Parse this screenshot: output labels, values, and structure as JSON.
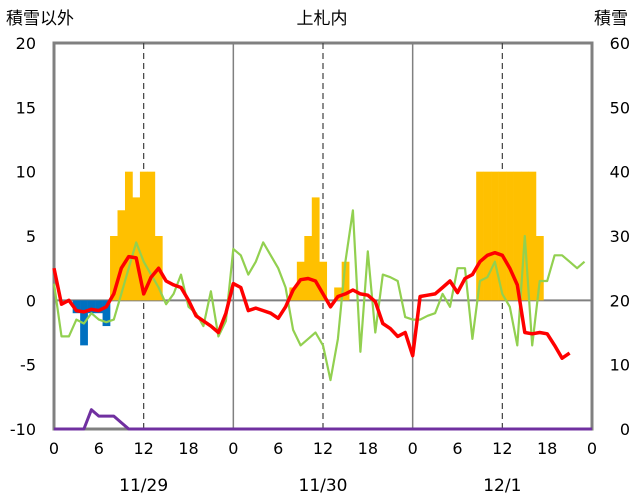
{
  "chart_data": {
    "type": "line",
    "title": "上札内",
    "left_axis_label": "積雪以外",
    "right_axis_label": "積雪",
    "left_ylim": [
      -10,
      20
    ],
    "left_yticks": [
      -10,
      -5,
      0,
      5,
      10,
      15,
      20
    ],
    "right_ylim": [
      0,
      60
    ],
    "right_yticks": [
      0,
      10,
      20,
      30,
      40,
      50,
      60
    ],
    "xlim": [
      0,
      72
    ],
    "x_unit": "hour",
    "x_tick_labels": [
      "0",
      "6",
      "12",
      "18",
      "0",
      "6",
      "12",
      "18",
      "0",
      "6",
      "12",
      "18",
      "0"
    ],
    "day_labels": [
      {
        "label": "11/29",
        "hour": 12
      },
      {
        "label": "11/30",
        "hour": 36
      },
      {
        "label": "12/1",
        "hour": 60
      }
    ],
    "grid": "solid day separators, dashed noon lines",
    "colors": {
      "snowfall": "#ffc000",
      "precipitation": "#0070c0",
      "temperature": "#ff0000",
      "wind": "#92d050",
      "snow_depth": "#7030a0",
      "frame": "#808080"
    },
    "series": [
      {
        "key": "snowfall",
        "style": "bar",
        "axis": "left",
        "data": [
          [
            8,
            5
          ],
          [
            9,
            7
          ],
          [
            10,
            10
          ],
          [
            11,
            8
          ],
          [
            12,
            10
          ],
          [
            13,
            10
          ],
          [
            14,
            5
          ],
          [
            32,
            1
          ],
          [
            33,
            3
          ],
          [
            34,
            5
          ],
          [
            35,
            8
          ],
          [
            36,
            3
          ],
          [
            38,
            1
          ],
          [
            39,
            3
          ],
          [
            57,
            10
          ],
          [
            58,
            10
          ],
          [
            59,
            10
          ],
          [
            60,
            10
          ],
          [
            61,
            10
          ],
          [
            62,
            10
          ],
          [
            63,
            10
          ],
          [
            64,
            10
          ],
          [
            65,
            5
          ]
        ]
      },
      {
        "key": "precipitation",
        "style": "bar",
        "axis": "left",
        "data": [
          [
            3,
            -1
          ],
          [
            4,
            -3.5
          ],
          [
            5,
            -1
          ],
          [
            6,
            -1
          ],
          [
            7,
            -2
          ]
        ]
      },
      {
        "key": "temperature",
        "style": "line",
        "axis": "left",
        "data": [
          [
            0,
            2.5
          ],
          [
            1,
            -0.3
          ],
          [
            2,
            0
          ],
          [
            3,
            -0.8
          ],
          [
            4,
            -0.9
          ],
          [
            5,
            -0.7
          ],
          [
            6,
            -0.8
          ],
          [
            7,
            -0.5
          ],
          [
            8,
            0.5
          ],
          [
            9,
            2.5
          ],
          [
            10,
            3.4
          ],
          [
            11,
            3.3
          ],
          [
            12,
            0.5
          ],
          [
            13,
            1.8
          ],
          [
            14,
            2.5
          ],
          [
            15,
            1.5
          ],
          [
            16,
            1.2
          ],
          [
            17,
            1
          ],
          [
            18,
            0
          ],
          [
            19,
            -1.2
          ],
          [
            20,
            -1.6
          ],
          [
            21,
            -2
          ],
          [
            22,
            -2.5
          ],
          [
            23,
            -1
          ],
          [
            24,
            1.3
          ],
          [
            25,
            1
          ],
          [
            26,
            -0.8
          ],
          [
            27,
            -0.6
          ],
          [
            28,
            -0.8
          ],
          [
            29,
            -1
          ],
          [
            30,
            -1.4
          ],
          [
            31,
            -0.5
          ],
          [
            32,
            0.8
          ],
          [
            33,
            1.6
          ],
          [
            34,
            1.7
          ],
          [
            35,
            1.5
          ],
          [
            36,
            0.5
          ],
          [
            37,
            -0.5
          ],
          [
            38,
            0.3
          ],
          [
            39,
            0.5
          ],
          [
            40,
            0.8
          ],
          [
            41,
            0.5
          ],
          [
            42,
            0.4
          ],
          [
            43,
            -0.1
          ],
          [
            44,
            -1.8
          ],
          [
            45,
            -2.2
          ],
          [
            46,
            -2.8
          ],
          [
            47,
            -2.5
          ],
          [
            48,
            -4.3
          ],
          [
            49,
            0.3
          ],
          [
            50,
            0.4
          ],
          [
            51,
            0.5
          ],
          [
            52,
            1
          ],
          [
            53,
            1.5
          ],
          [
            54,
            0.6
          ],
          [
            55,
            1.7
          ],
          [
            56,
            2
          ],
          [
            57,
            3
          ],
          [
            58,
            3.5
          ],
          [
            59,
            3.7
          ],
          [
            60,
            3.5
          ],
          [
            61,
            2.5
          ],
          [
            62,
            1.2
          ],
          [
            63,
            -2.5
          ],
          [
            64,
            -2.6
          ],
          [
            65,
            -2.5
          ],
          [
            66,
            -2.6
          ],
          [
            67,
            -3.5
          ],
          [
            68,
            -4.5
          ],
          [
            69,
            -4.1
          ]
        ]
      },
      {
        "key": "wind",
        "style": "line",
        "axis": "left",
        "data": [
          [
            0,
            1.3
          ],
          [
            1,
            -2.8
          ],
          [
            2,
            -2.8
          ],
          [
            3,
            -1.5
          ],
          [
            4,
            -1.8
          ],
          [
            5,
            -1
          ],
          [
            6,
            -1.5
          ],
          [
            7,
            -1.7
          ],
          [
            8,
            -1.5
          ],
          [
            9,
            0.5
          ],
          [
            10,
            2.5
          ],
          [
            11,
            4.5
          ],
          [
            12,
            3
          ],
          [
            13,
            2
          ],
          [
            14,
            1
          ],
          [
            15,
            -0.3
          ],
          [
            16,
            0.5
          ],
          [
            17,
            2
          ],
          [
            18,
            -0.5
          ],
          [
            19,
            -1
          ],
          [
            20,
            -2
          ],
          [
            21,
            0.7
          ],
          [
            22,
            -2.8
          ],
          [
            23,
            -1.6
          ],
          [
            24,
            4
          ],
          [
            25,
            3.5
          ],
          [
            26,
            2
          ],
          [
            27,
            3
          ],
          [
            28,
            4.5
          ],
          [
            29,
            3.5
          ],
          [
            30,
            2.5
          ],
          [
            31,
            1
          ],
          [
            32,
            -2.3
          ],
          [
            33,
            -3.5
          ],
          [
            34,
            -3
          ],
          [
            35,
            -2.5
          ],
          [
            36,
            -3.5
          ],
          [
            37,
            -6.2
          ],
          [
            38,
            -3
          ],
          [
            39,
            3
          ],
          [
            40,
            7
          ],
          [
            41,
            -4
          ],
          [
            42,
            3.8
          ],
          [
            43,
            -2.5
          ],
          [
            44,
            2
          ],
          [
            45,
            1.8
          ],
          [
            46,
            1.5
          ],
          [
            47,
            -1.3
          ],
          [
            48,
            -1.5
          ],
          [
            49,
            -1.5
          ],
          [
            50,
            -1.2
          ],
          [
            51,
            -1
          ],
          [
            52,
            0.5
          ],
          [
            53,
            -0.5
          ],
          [
            54,
            2.5
          ],
          [
            55,
            2.5
          ],
          [
            56,
            -3
          ],
          [
            57,
            1.5
          ],
          [
            58,
            1.8
          ],
          [
            59,
            3
          ],
          [
            60,
            0.5
          ],
          [
            61,
            -0.5
          ],
          [
            62,
            -3.5
          ],
          [
            63,
            5
          ],
          [
            64,
            -3.5
          ],
          [
            65,
            1.5
          ],
          [
            66,
            1.5
          ],
          [
            67,
            3.5
          ],
          [
            68,
            3.5
          ],
          [
            69,
            3
          ],
          [
            70,
            2.5
          ],
          [
            71,
            3
          ]
        ]
      },
      {
        "key": "snow_depth",
        "style": "line",
        "axis": "right",
        "data": [
          [
            0,
            0
          ],
          [
            1,
            0
          ],
          [
            2,
            0
          ],
          [
            3,
            0
          ],
          [
            4,
            0
          ],
          [
            5,
            3
          ],
          [
            6,
            2
          ],
          [
            7,
            2
          ],
          [
            8,
            2
          ],
          [
            9,
            1
          ],
          [
            10,
            0
          ],
          [
            11,
            0
          ],
          [
            12,
            0
          ],
          [
            13,
            0
          ],
          [
            14,
            0
          ],
          [
            15,
            0
          ],
          [
            16,
            0
          ],
          [
            18,
            0
          ],
          [
            24,
            0
          ],
          [
            30,
            0
          ],
          [
            36,
            0
          ],
          [
            42,
            0
          ],
          [
            48,
            0
          ],
          [
            54,
            0
          ],
          [
            60,
            0
          ],
          [
            66,
            0
          ],
          [
            72,
            0
          ]
        ]
      }
    ]
  }
}
